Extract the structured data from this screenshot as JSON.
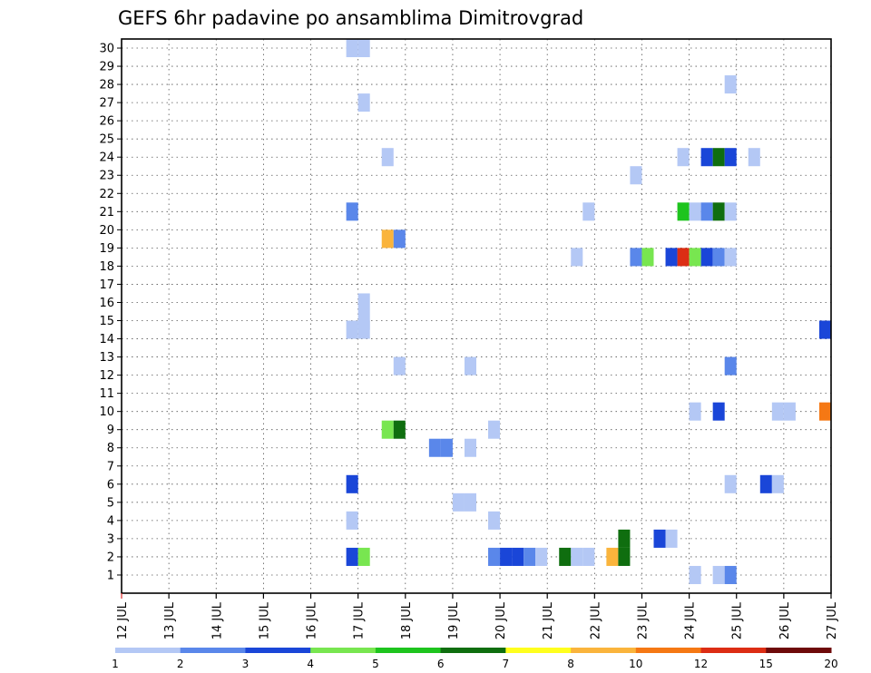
{
  "chart_data": {
    "type": "heatmap",
    "title": "GEFS 6hr padavine po ansamblima Dimitrovgrad",
    "x_tick_labels": [
      "12 JUL",
      "13 JUL",
      "14 JUL",
      "15 JUL",
      "16 JUL",
      "17 JUL",
      "18 JUL",
      "19 JUL",
      "20 JUL",
      "21 JUL",
      "22 JUL",
      "23 JUL",
      "24 JUL",
      "25 JUL",
      "26 JUL",
      "27 JUL"
    ],
    "x_range_days": [
      12,
      27
    ],
    "y_tick_labels": [
      "1",
      "2",
      "3",
      "4",
      "5",
      "6",
      "7",
      "8",
      "9",
      "10",
      "11",
      "12",
      "13",
      "14",
      "15",
      "16",
      "17",
      "18",
      "19",
      "20",
      "21",
      "22",
      "23",
      "24",
      "25",
      "26",
      "27",
      "28",
      "29",
      "30"
    ],
    "y_range": [
      0,
      30.5
    ],
    "grid": true,
    "legend": {
      "placement": "bottom",
      "colors": [
        "#b4c8f5",
        "#5a87ea",
        "#1a46d8",
        "#78e650",
        "#1ec41e",
        "#0f6e0f",
        "#ffff1e",
        "#fab43c",
        "#f57814",
        "#dc2d14",
        "#6e0a0a"
      ],
      "labels": [
        "1",
        "2",
        "3",
        "4",
        "5",
        "6",
        "7",
        "8",
        "10",
        "12",
        "15",
        "20"
      ]
    },
    "cells_note": "each cell: member (y), day value (x start of 6hr window), level index into legend colors",
    "cells": [
      {
        "x": 16.75,
        "y": 30,
        "c": 0
      },
      {
        "x": 17.0,
        "y": 30,
        "c": 0
      },
      {
        "x": 24.75,
        "y": 28,
        "c": 0
      },
      {
        "x": 17.0,
        "y": 27,
        "c": 0
      },
      {
        "x": 17.5,
        "y": 24,
        "c": 0
      },
      {
        "x": 23.75,
        "y": 24,
        "c": 0
      },
      {
        "x": 24.25,
        "y": 24,
        "c": 2
      },
      {
        "x": 24.5,
        "y": 24,
        "c": 5
      },
      {
        "x": 24.75,
        "y": 24,
        "c": 2
      },
      {
        "x": 25.25,
        "y": 24,
        "c": 0
      },
      {
        "x": 22.75,
        "y": 23,
        "c": 0
      },
      {
        "x": 16.75,
        "y": 21,
        "c": 1
      },
      {
        "x": 21.75,
        "y": 21,
        "c": 0
      },
      {
        "x": 23.75,
        "y": 21,
        "c": 4
      },
      {
        "x": 24.0,
        "y": 21,
        "c": 0
      },
      {
        "x": 24.25,
        "y": 21,
        "c": 1
      },
      {
        "x": 24.5,
        "y": 21,
        "c": 5
      },
      {
        "x": 24.75,
        "y": 21,
        "c": 0
      },
      {
        "x": 17.5,
        "y": 19.5,
        "c": 7
      },
      {
        "x": 17.75,
        "y": 19.5,
        "c": 1
      },
      {
        "x": 21.5,
        "y": 18.5,
        "c": 0
      },
      {
        "x": 22.75,
        "y": 18.5,
        "c": 1
      },
      {
        "x": 23.0,
        "y": 18.5,
        "c": 3
      },
      {
        "x": 23.5,
        "y": 18.5,
        "c": 2
      },
      {
        "x": 23.75,
        "y": 18.5,
        "c": 9
      },
      {
        "x": 24.0,
        "y": 18.5,
        "c": 3
      },
      {
        "x": 24.25,
        "y": 18.5,
        "c": 2
      },
      {
        "x": 24.5,
        "y": 18.5,
        "c": 1
      },
      {
        "x": 24.75,
        "y": 18.5,
        "c": 0
      },
      {
        "x": 17.0,
        "y": 16,
        "c": 0
      },
      {
        "x": 17.0,
        "y": 15,
        "c": 0
      },
      {
        "x": 16.75,
        "y": 14.5,
        "c": 0
      },
      {
        "x": 17.0,
        "y": 14.5,
        "c": 0
      },
      {
        "x": 26.75,
        "y": 14.5,
        "c": 2
      },
      {
        "x": 17.75,
        "y": 12.5,
        "c": 0
      },
      {
        "x": 19.25,
        "y": 12.5,
        "c": 0
      },
      {
        "x": 24.75,
        "y": 12.5,
        "c": 1
      },
      {
        "x": 24.0,
        "y": 10,
        "c": 0
      },
      {
        "x": 24.5,
        "y": 10,
        "c": 2
      },
      {
        "x": 25.75,
        "y": 10,
        "c": 0
      },
      {
        "x": 26.0,
        "y": 10,
        "c": 0
      },
      {
        "x": 26.75,
        "y": 10,
        "c": 8
      },
      {
        "x": 17.5,
        "y": 9,
        "c": 3
      },
      {
        "x": 17.75,
        "y": 9,
        "c": 5
      },
      {
        "x": 19.75,
        "y": 9,
        "c": 0
      },
      {
        "x": 18.5,
        "y": 8,
        "c": 1
      },
      {
        "x": 18.75,
        "y": 8,
        "c": 1
      },
      {
        "x": 19.25,
        "y": 8,
        "c": 0
      },
      {
        "x": 16.75,
        "y": 6,
        "c": 2
      },
      {
        "x": 24.75,
        "y": 6,
        "c": 0
      },
      {
        "x": 25.5,
        "y": 6,
        "c": 2
      },
      {
        "x": 25.75,
        "y": 6,
        "c": 0
      },
      {
        "x": 19.0,
        "y": 5,
        "c": 0
      },
      {
        "x": 19.25,
        "y": 5,
        "c": 0
      },
      {
        "x": 16.75,
        "y": 4,
        "c": 0
      },
      {
        "x": 19.75,
        "y": 4,
        "c": 0
      },
      {
        "x": 22.5,
        "y": 3,
        "c": 5
      },
      {
        "x": 23.25,
        "y": 3,
        "c": 2
      },
      {
        "x": 23.5,
        "y": 3,
        "c": 0
      },
      {
        "x": 16.75,
        "y": 2,
        "c": 2
      },
      {
        "x": 17.0,
        "y": 2,
        "c": 3
      },
      {
        "x": 19.75,
        "y": 2,
        "c": 1
      },
      {
        "x": 20.0,
        "y": 2,
        "c": 2
      },
      {
        "x": 20.25,
        "y": 2,
        "c": 2
      },
      {
        "x": 20.5,
        "y": 2,
        "c": 1
      },
      {
        "x": 20.75,
        "y": 2,
        "c": 0
      },
      {
        "x": 21.25,
        "y": 2,
        "c": 5
      },
      {
        "x": 21.5,
        "y": 2,
        "c": 0
      },
      {
        "x": 21.75,
        "y": 2,
        "c": 0
      },
      {
        "x": 22.25,
        "y": 2,
        "c": 7
      },
      {
        "x": 22.5,
        "y": 2,
        "c": 5
      },
      {
        "x": 24.0,
        "y": 1,
        "c": 0
      },
      {
        "x": 24.5,
        "y": 1,
        "c": 0
      },
      {
        "x": 24.75,
        "y": 1,
        "c": 1
      }
    ]
  }
}
